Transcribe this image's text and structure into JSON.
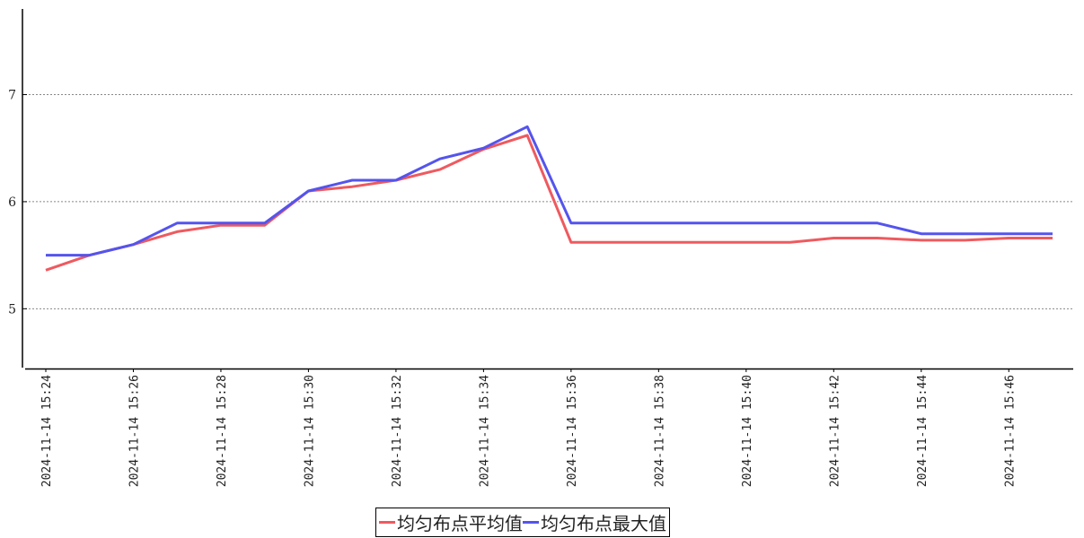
{
  "chart_data": {
    "type": "line",
    "title": "",
    "xlabel": "",
    "ylabel": "",
    "ylim": [
      4.45,
      7.8
    ],
    "yticks": [
      5,
      6,
      7
    ],
    "grid": {
      "y": true,
      "x": false,
      "style": "dotted"
    },
    "legend_position": "bottom-center",
    "x": [
      "2024-11-14 15:24",
      "2024-11-14 15:25",
      "2024-11-14 15:26",
      "2024-11-14 15:27",
      "2024-11-14 15:28",
      "2024-11-14 15:29",
      "2024-11-14 15:30",
      "2024-11-14 15:31",
      "2024-11-14 15:32",
      "2024-11-14 15:33",
      "2024-11-14 15:34",
      "2024-11-14 15:35",
      "2024-11-14 15:36",
      "2024-11-14 15:37",
      "2024-11-14 15:38",
      "2024-11-14 15:39",
      "2024-11-14 15:40",
      "2024-11-14 15:41",
      "2024-11-14 15:42",
      "2024-11-14 15:43",
      "2024-11-14 15:44",
      "2024-11-14 15:45",
      "2024-11-14 15:46",
      "2024-11-14 15:47"
    ],
    "xtick_labels": [
      "2024-11-14 15:24",
      "2024-11-14 15:26",
      "2024-11-14 15:28",
      "2024-11-14 15:30",
      "2024-11-14 15:32",
      "2024-11-14 15:34",
      "2024-11-14 15:36",
      "2024-11-14 15:38",
      "2024-11-14 15:40",
      "2024-11-14 15:42",
      "2024-11-14 15:44",
      "2024-11-14 15:46"
    ],
    "series": [
      {
        "name": "均匀布点平均值",
        "color": "#ee5a5f",
        "values": [
          5.36,
          5.5,
          5.6,
          5.72,
          5.78,
          5.78,
          6.1,
          6.14,
          6.2,
          6.3,
          6.49,
          6.62,
          5.62,
          5.62,
          5.62,
          5.62,
          5.62,
          5.62,
          5.66,
          5.66,
          5.64,
          5.64,
          5.66,
          5.66
        ]
      },
      {
        "name": "均匀布点最大值",
        "color": "#5454ee",
        "values": [
          5.5,
          5.5,
          5.6,
          5.8,
          5.8,
          5.8,
          6.1,
          6.2,
          6.2,
          6.4,
          6.5,
          6.7,
          5.8,
          5.8,
          5.8,
          5.8,
          5.8,
          5.8,
          5.8,
          5.8,
          5.7,
          5.7,
          5.7,
          5.7
        ]
      }
    ]
  }
}
